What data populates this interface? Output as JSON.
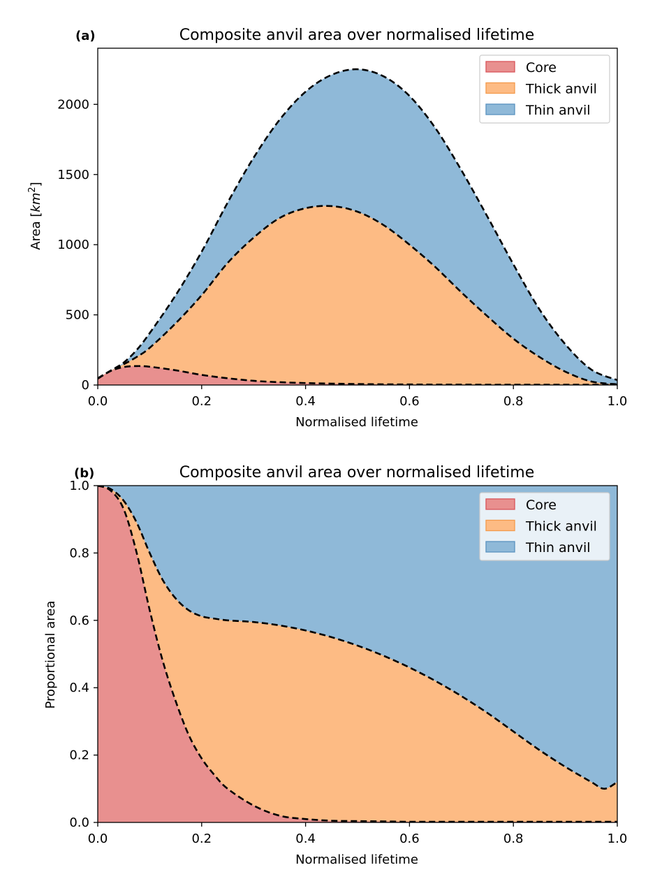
{
  "colors": {
    "core": "#e8908f",
    "core_edge": "#d9545a",
    "thick": "#fdbb84",
    "thick_edge": "#f39b4d",
    "thin": "#8fb9d8",
    "thin_edge": "#5a93c0"
  },
  "chart_data": [
    {
      "type": "area",
      "stacked": true,
      "panel_label": "(a)",
      "title": "Composite anvil area over normalised lifetime",
      "xlabel": "Normalised lifetime",
      "ylabel": "Area [km²]",
      "xlim": [
        0,
        1
      ],
      "ylim": [
        0,
        2400
      ],
      "xticks": [
        0,
        0.2,
        0.4,
        0.6,
        0.8,
        1.0
      ],
      "xtick_labels": [
        "0.0",
        "0.2",
        "0.4",
        "0.6",
        "0.8",
        "1.0"
      ],
      "yticks": [
        0,
        500,
        1000,
        1500,
        2000
      ],
      "ytick_labels": [
        "0",
        "500",
        "1000",
        "1500",
        "2000"
      ],
      "legend_position": "upper right",
      "grid": false,
      "x": [
        0,
        0.025,
        0.05,
        0.075,
        0.1,
        0.15,
        0.2,
        0.25,
        0.3,
        0.35,
        0.4,
        0.45,
        0.5,
        0.55,
        0.6,
        0.65,
        0.7,
        0.75,
        0.8,
        0.85,
        0.9,
        0.95,
        1.0
      ],
      "series": [
        {
          "name": "Core",
          "key": "core",
          "values": [
            45,
            100,
            128,
            135,
            130,
            105,
            72,
            48,
            30,
            20,
            14,
            10,
            7,
            5,
            4,
            3,
            3,
            2,
            2,
            2,
            2,
            2,
            2
          ]
        },
        {
          "name": "Thick anvil",
          "key": "thick",
          "values": [
            48,
            102,
            148,
            200,
            265,
            440,
            640,
            870,
            1050,
            1190,
            1260,
            1275,
            1235,
            1140,
            1000,
            840,
            660,
            490,
            330,
            200,
            95,
            25,
            5
          ]
        },
        {
          "name": "Thin anvil",
          "key": "thin",
          "values": [
            48,
            103,
            160,
            250,
            370,
            640,
            950,
            1300,
            1620,
            1890,
            2090,
            2210,
            2250,
            2200,
            2060,
            1830,
            1530,
            1200,
            860,
            540,
            290,
            110,
            35
          ]
        }
      ]
    },
    {
      "type": "area",
      "stacked": true,
      "panel_label": "(b)",
      "title": "Composite anvil area over normalised lifetime",
      "xlabel": "Normalised lifetime",
      "ylabel": "Proportional area",
      "xlim": [
        0,
        1
      ],
      "ylim": [
        0,
        1
      ],
      "xticks": [
        0,
        0.2,
        0.4,
        0.6,
        0.8,
        1.0
      ],
      "xtick_labels": [
        "0.0",
        "0.2",
        "0.4",
        "0.6",
        "0.8",
        "1.0"
      ],
      "yticks": [
        0,
        0.2,
        0.4,
        0.6,
        0.8,
        1.0
      ],
      "ytick_labels": [
        "0.0",
        "0.2",
        "0.4",
        "0.6",
        "0.8",
        "1.0"
      ],
      "legend_position": "upper right",
      "grid": false,
      "x": [
        0,
        0.025,
        0.05,
        0.075,
        0.1,
        0.125,
        0.15,
        0.175,
        0.2,
        0.225,
        0.25,
        0.3,
        0.35,
        0.4,
        0.45,
        0.5,
        0.55,
        0.6,
        0.65,
        0.7,
        0.75,
        0.8,
        0.85,
        0.9,
        0.95,
        0.975,
        1.0
      ],
      "series": [
        {
          "name": "Core",
          "key": "core",
          "values": [
            1.0,
            0.985,
            0.93,
            0.8,
            0.63,
            0.48,
            0.36,
            0.26,
            0.19,
            0.14,
            0.1,
            0.05,
            0.02,
            0.01,
            0.005,
            0.004,
            0.003,
            0.002,
            0.002,
            0.002,
            0.002,
            0.002,
            0.002,
            0.002,
            0.002,
            0.002,
            0.002
          ]
        },
        {
          "name": "Thick anvil",
          "key": "thick",
          "values": [
            1.0,
            0.99,
            0.955,
            0.89,
            0.8,
            0.72,
            0.665,
            0.63,
            0.612,
            0.605,
            0.6,
            0.595,
            0.585,
            0.57,
            0.55,
            0.525,
            0.495,
            0.46,
            0.42,
            0.375,
            0.325,
            0.27,
            0.215,
            0.165,
            0.12,
            0.1,
            0.12
          ]
        },
        {
          "name": "Thin anvil",
          "key": "thin",
          "values": [
            1.0,
            1.0,
            1.0,
            1.0,
            1.0,
            1.0,
            1.0,
            1.0,
            1.0,
            1.0,
            1.0,
            1.0,
            1.0,
            1.0,
            1.0,
            1.0,
            1.0,
            1.0,
            1.0,
            1.0,
            1.0,
            1.0,
            1.0,
            1.0,
            1.0,
            1.0,
            1.0
          ]
        }
      ]
    }
  ]
}
